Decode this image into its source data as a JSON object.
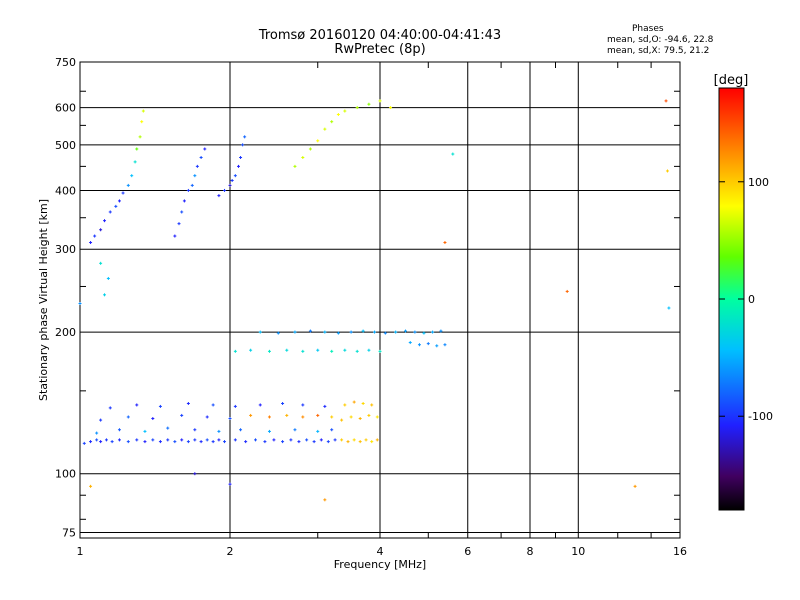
{
  "chart_data": {
    "type": "scatter",
    "title_line1": "Tromsø 20160120 04:40:00-04:41:43",
    "title_line2": "RwPretec (8p)",
    "stats": {
      "heading": "Phases",
      "line1": "mean, sd,O: -94.6, 22.8",
      "line2": "mean, sd,X:  79.5, 21.2"
    },
    "xlabel": "Frequency [MHz]",
    "ylabel": "Stationary phase Virtual Height [km]",
    "x_scale": "log",
    "y_scale": "log",
    "xlim": [
      1,
      16
    ],
    "ylim": [
      73,
      750
    ],
    "x_ticks": [
      {
        "value": 1,
        "label": "1"
      },
      {
        "value": 2,
        "label": "2"
      },
      {
        "value": 4,
        "label": "4"
      },
      {
        "value": 6,
        "label": "6"
      },
      {
        "value": 8,
        "label": "8"
      },
      {
        "value": 10,
        "label": "10"
      },
      {
        "value": 16,
        "label": "16"
      }
    ],
    "y_ticks": [
      {
        "value": 75,
        "label": "75"
      },
      {
        "value": 100,
        "label": "100"
      },
      {
        "value": 200,
        "label": "200"
      },
      {
        "value": 300,
        "label": "300"
      },
      {
        "value": 400,
        "label": "400"
      },
      {
        "value": 500,
        "label": "500"
      },
      {
        "value": 600,
        "label": "600"
      },
      {
        "value": 750,
        "label": "750"
      }
    ],
    "grid": true,
    "colorbar": {
      "label": "[deg]",
      "range": [
        -180,
        180
      ],
      "ticks": [
        {
          "value": 100,
          "label": "100"
        },
        {
          "value": 0,
          "label": "0"
        },
        {
          "value": -100,
          "label": "-100"
        }
      ]
    },
    "series": [
      {
        "points": [
          [
            1.02,
            116,
            -95
          ],
          [
            1.05,
            117,
            -105
          ],
          [
            1.08,
            118,
            -90
          ],
          [
            1.1,
            117,
            -110
          ],
          [
            1.13,
            118,
            -100
          ],
          [
            1.16,
            117,
            -95
          ],
          [
            1.2,
            118,
            -105
          ],
          [
            1.25,
            117,
            -90
          ],
          [
            1.3,
            118,
            -100
          ],
          [
            1.35,
            117,
            -110
          ],
          [
            1.4,
            118,
            -95
          ],
          [
            1.45,
            117,
            -105
          ],
          [
            1.5,
            118,
            -100
          ],
          [
            1.55,
            117,
            -90
          ],
          [
            1.6,
            118,
            -110
          ],
          [
            1.65,
            117,
            -95
          ],
          [
            1.7,
            118,
            -100
          ],
          [
            1.75,
            117,
            -105
          ],
          [
            1.8,
            118,
            -90
          ],
          [
            1.85,
            117,
            -100
          ],
          [
            1.9,
            118,
            -110
          ],
          [
            1.95,
            117,
            -95
          ],
          [
            2.05,
            118,
            -100
          ],
          [
            2.15,
            117,
            -105
          ],
          [
            2.25,
            118,
            -90
          ],
          [
            2.35,
            117,
            -100
          ],
          [
            2.45,
            118,
            -110
          ],
          [
            2.55,
            117,
            -95
          ],
          [
            2.65,
            118,
            -100
          ],
          [
            2.75,
            117,
            -105
          ],
          [
            2.85,
            118,
            -90
          ],
          [
            2.95,
            117,
            -100
          ],
          [
            3.05,
            118,
            -110
          ],
          [
            3.15,
            117,
            -95
          ],
          [
            3.25,
            118,
            -100
          ],
          [
            1.08,
            122,
            -60
          ],
          [
            1.2,
            124,
            -85
          ],
          [
            1.35,
            123,
            -40
          ],
          [
            1.5,
            125,
            -75
          ],
          [
            1.7,
            124,
            -100
          ],
          [
            1.9,
            123,
            -60
          ],
          [
            2.1,
            124,
            -80
          ],
          [
            2.4,
            123,
            -50
          ],
          [
            2.7,
            124,
            -70
          ],
          [
            3.0,
            123,
            -45
          ],
          [
            3.2,
            124,
            -90
          ],
          [
            1.1,
            130,
            -100
          ],
          [
            1.25,
            132,
            -80
          ],
          [
            1.4,
            131,
            -110
          ],
          [
            1.6,
            133,
            -95
          ],
          [
            1.8,
            132,
            -105
          ],
          [
            2.0,
            131,
            -90
          ],
          [
            2.2,
            133,
            120
          ],
          [
            2.4,
            132,
            130
          ],
          [
            2.6,
            133,
            110
          ],
          [
            2.8,
            132,
            125
          ],
          [
            3.0,
            133,
            140
          ],
          [
            3.2,
            132,
            100
          ],
          [
            1.15,
            138,
            -100
          ],
          [
            1.3,
            140,
            -110
          ],
          [
            1.45,
            139,
            -95
          ],
          [
            1.65,
            141,
            -105
          ],
          [
            1.85,
            140,
            -90
          ],
          [
            2.05,
            139,
            -100
          ],
          [
            2.3,
            140,
            -110
          ],
          [
            2.55,
            141,
            -95
          ],
          [
            2.8,
            140,
            -100
          ],
          [
            3.1,
            139,
            -105
          ],
          [
            3.35,
            118,
            100
          ],
          [
            3.45,
            117,
            110
          ],
          [
            3.55,
            118,
            95
          ],
          [
            3.65,
            117,
            105
          ],
          [
            3.75,
            118,
            100
          ],
          [
            3.85,
            117,
            90
          ],
          [
            3.95,
            118,
            110
          ],
          [
            3.35,
            130,
            105
          ],
          [
            3.5,
            132,
            95
          ],
          [
            3.65,
            131,
            110
          ],
          [
            3.8,
            133,
            100
          ],
          [
            3.95,
            132,
            90
          ],
          [
            3.4,
            140,
            100
          ],
          [
            3.55,
            142,
            115
          ],
          [
            3.7,
            141,
            95
          ],
          [
            3.85,
            140,
            105
          ],
          [
            2.05,
            182,
            -20
          ],
          [
            2.2,
            183,
            -30
          ],
          [
            2.4,
            182,
            -15
          ],
          [
            2.6,
            183,
            -25
          ],
          [
            2.8,
            182,
            -20
          ],
          [
            3.0,
            183,
            -35
          ],
          [
            3.2,
            182,
            -10
          ],
          [
            3.4,
            183,
            -25
          ],
          [
            3.6,
            182,
            -20
          ],
          [
            3.8,
            183,
            -30
          ],
          [
            4.0,
            182,
            -15
          ],
          [
            2.3,
            200,
            -40
          ],
          [
            2.5,
            199,
            -60
          ],
          [
            2.7,
            200,
            -50
          ],
          [
            2.9,
            201,
            -70
          ],
          [
            3.1,
            200,
            -45
          ],
          [
            3.3,
            199,
            -55
          ],
          [
            3.5,
            200,
            -60
          ],
          [
            3.7,
            201,
            -40
          ],
          [
            3.9,
            200,
            -50
          ],
          [
            4.1,
            199,
            -65
          ],
          [
            4.3,
            200,
            -45
          ],
          [
            4.5,
            201,
            -55
          ],
          [
            4.7,
            200,
            -60
          ],
          [
            4.9,
            199,
            -40
          ],
          [
            5.1,
            200,
            -50
          ],
          [
            5.3,
            201,
            -60
          ],
          [
            4.6,
            190,
            -50
          ],
          [
            4.8,
            188,
            -60
          ],
          [
            5.0,
            189,
            -70
          ],
          [
            5.2,
            187,
            -55
          ],
          [
            5.4,
            188,
            -65
          ],
          [
            1.05,
            310,
            -110
          ],
          [
            1.07,
            320,
            -100
          ],
          [
            1.1,
            330,
            -120
          ],
          [
            1.12,
            345,
            -110
          ],
          [
            1.15,
            360,
            -100
          ],
          [
            1.18,
            370,
            -90
          ],
          [
            1.2,
            380,
            -110
          ],
          [
            1.22,
            395,
            -100
          ],
          [
            1.25,
            410,
            -60
          ],
          [
            1.27,
            430,
            -40
          ],
          [
            1.29,
            460,
            -20
          ],
          [
            1.3,
            490,
            40
          ],
          [
            1.32,
            520,
            60
          ],
          [
            1.33,
            560,
            80
          ],
          [
            1.34,
            590,
            70
          ],
          [
            1.55,
            320,
            -110
          ],
          [
            1.58,
            340,
            -100
          ],
          [
            1.6,
            360,
            -90
          ],
          [
            1.62,
            380,
            -110
          ],
          [
            1.65,
            400,
            -100
          ],
          [
            1.68,
            410,
            -80
          ],
          [
            1.7,
            430,
            -60
          ],
          [
            1.72,
            450,
            -100
          ],
          [
            1.75,
            470,
            -90
          ],
          [
            1.78,
            490,
            -110
          ],
          [
            1.9,
            390,
            -110
          ],
          [
            1.95,
            400,
            -100
          ],
          [
            2.0,
            410,
            -120
          ],
          [
            2.02,
            420,
            -100
          ],
          [
            2.05,
            430,
            -90
          ],
          [
            2.08,
            450,
            -110
          ],
          [
            2.1,
            470,
            -100
          ],
          [
            2.12,
            500,
            -90
          ],
          [
            2.14,
            520,
            -80
          ],
          [
            2.7,
            450,
            60
          ],
          [
            2.8,
            470,
            70
          ],
          [
            2.9,
            490,
            60
          ],
          [
            3.0,
            510,
            80
          ],
          [
            3.1,
            540,
            70
          ],
          [
            3.2,
            560,
            60
          ],
          [
            3.3,
            580,
            80
          ],
          [
            3.4,
            590,
            70
          ],
          [
            3.6,
            600,
            60
          ],
          [
            3.8,
            610,
            50
          ],
          [
            4.0,
            620,
            70
          ],
          [
            4.2,
            600,
            80
          ],
          [
            1.12,
            240,
            -30
          ],
          [
            1.14,
            260,
            -40
          ],
          [
            1.1,
            280,
            -20
          ],
          [
            1.0,
            230,
            -60
          ],
          [
            9.5,
            244,
            140
          ],
          [
            15.0,
            620,
            150
          ],
          [
            15.2,
            225,
            -40
          ],
          [
            15.1,
            440,
            100
          ],
          [
            5.4,
            310,
            140
          ],
          [
            5.6,
            478,
            -20
          ],
          [
            1.05,
            94,
            110
          ],
          [
            3.1,
            88,
            120
          ],
          [
            1.7,
            100,
            -120
          ],
          [
            2.0,
            95,
            -110
          ],
          [
            13.0,
            94,
            120
          ]
        ]
      }
    ]
  }
}
